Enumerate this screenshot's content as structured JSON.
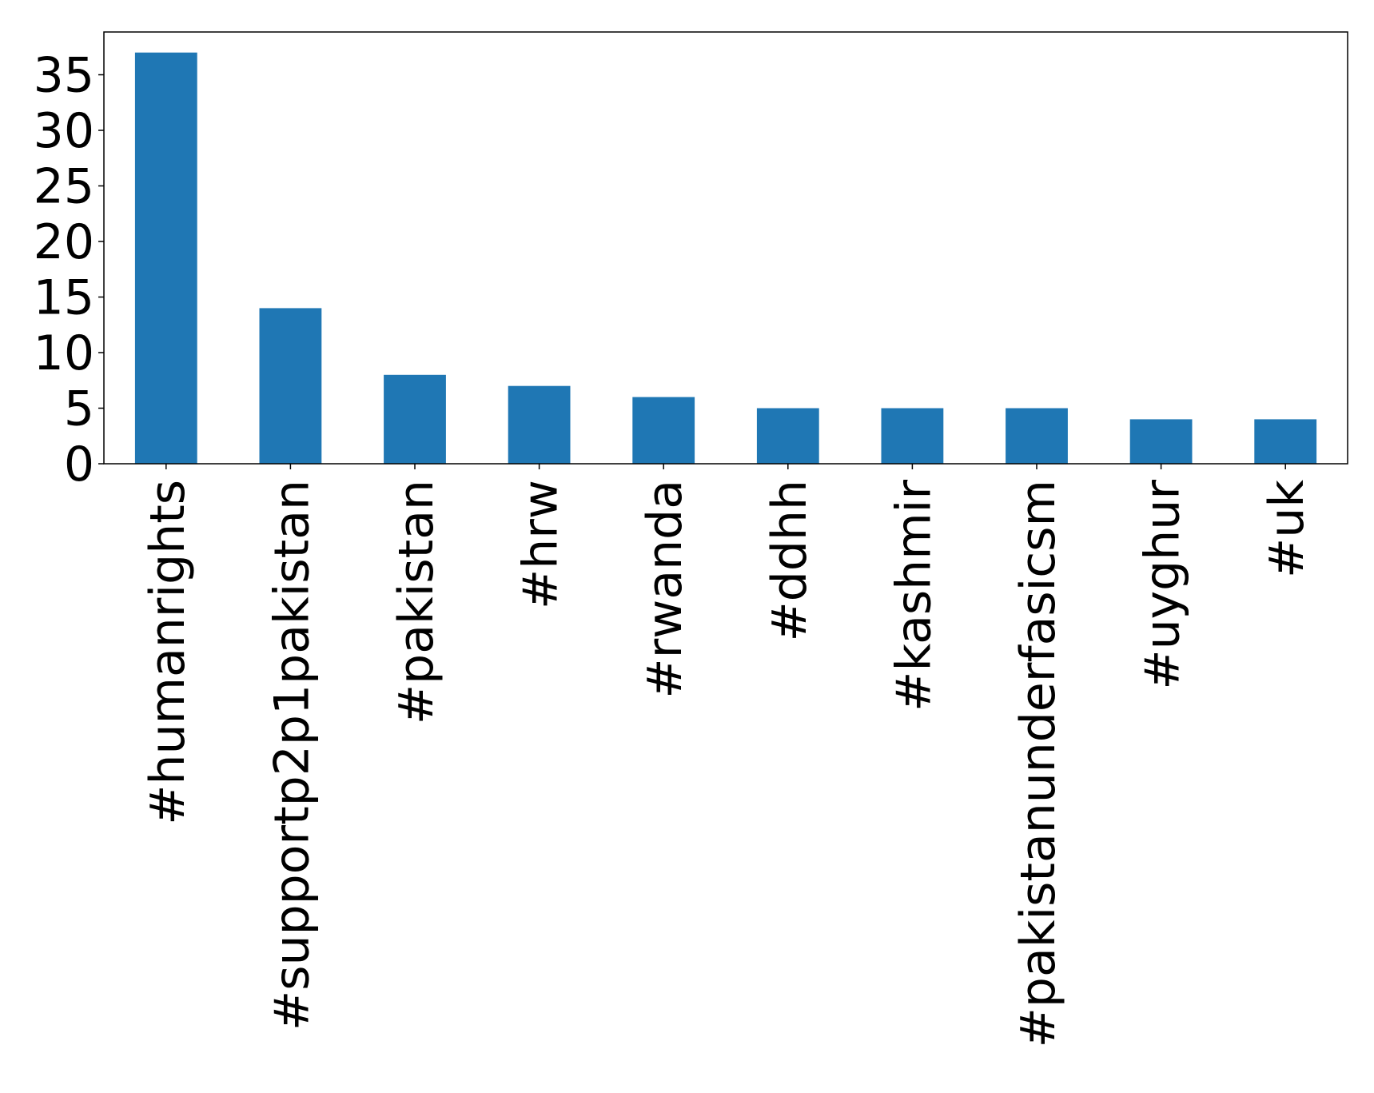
{
  "chart_data": {
    "type": "bar",
    "title": "",
    "xlabel": "",
    "ylabel": "",
    "categories": [
      "#humanrights",
      "#supportp2p1pakistan",
      "#pakistan",
      "#hrw",
      "#rwanda",
      "#ddhh",
      "#kashmir",
      "#pakistanunderfasicsm",
      "#uyghur",
      "#uk"
    ],
    "values": [
      37,
      14,
      8,
      7,
      6,
      5,
      5,
      5,
      4,
      4
    ],
    "ylim": [
      0,
      38.85
    ],
    "yticks": [
      0,
      5,
      10,
      15,
      20,
      25,
      30,
      35
    ],
    "ytick_labels": [
      "0",
      "5",
      "10",
      "15",
      "20",
      "25",
      "30",
      "35"
    ],
    "bar_color": "#1f77b4",
    "grid": false,
    "legend": "none",
    "xtick_rotation": "vertical"
  }
}
